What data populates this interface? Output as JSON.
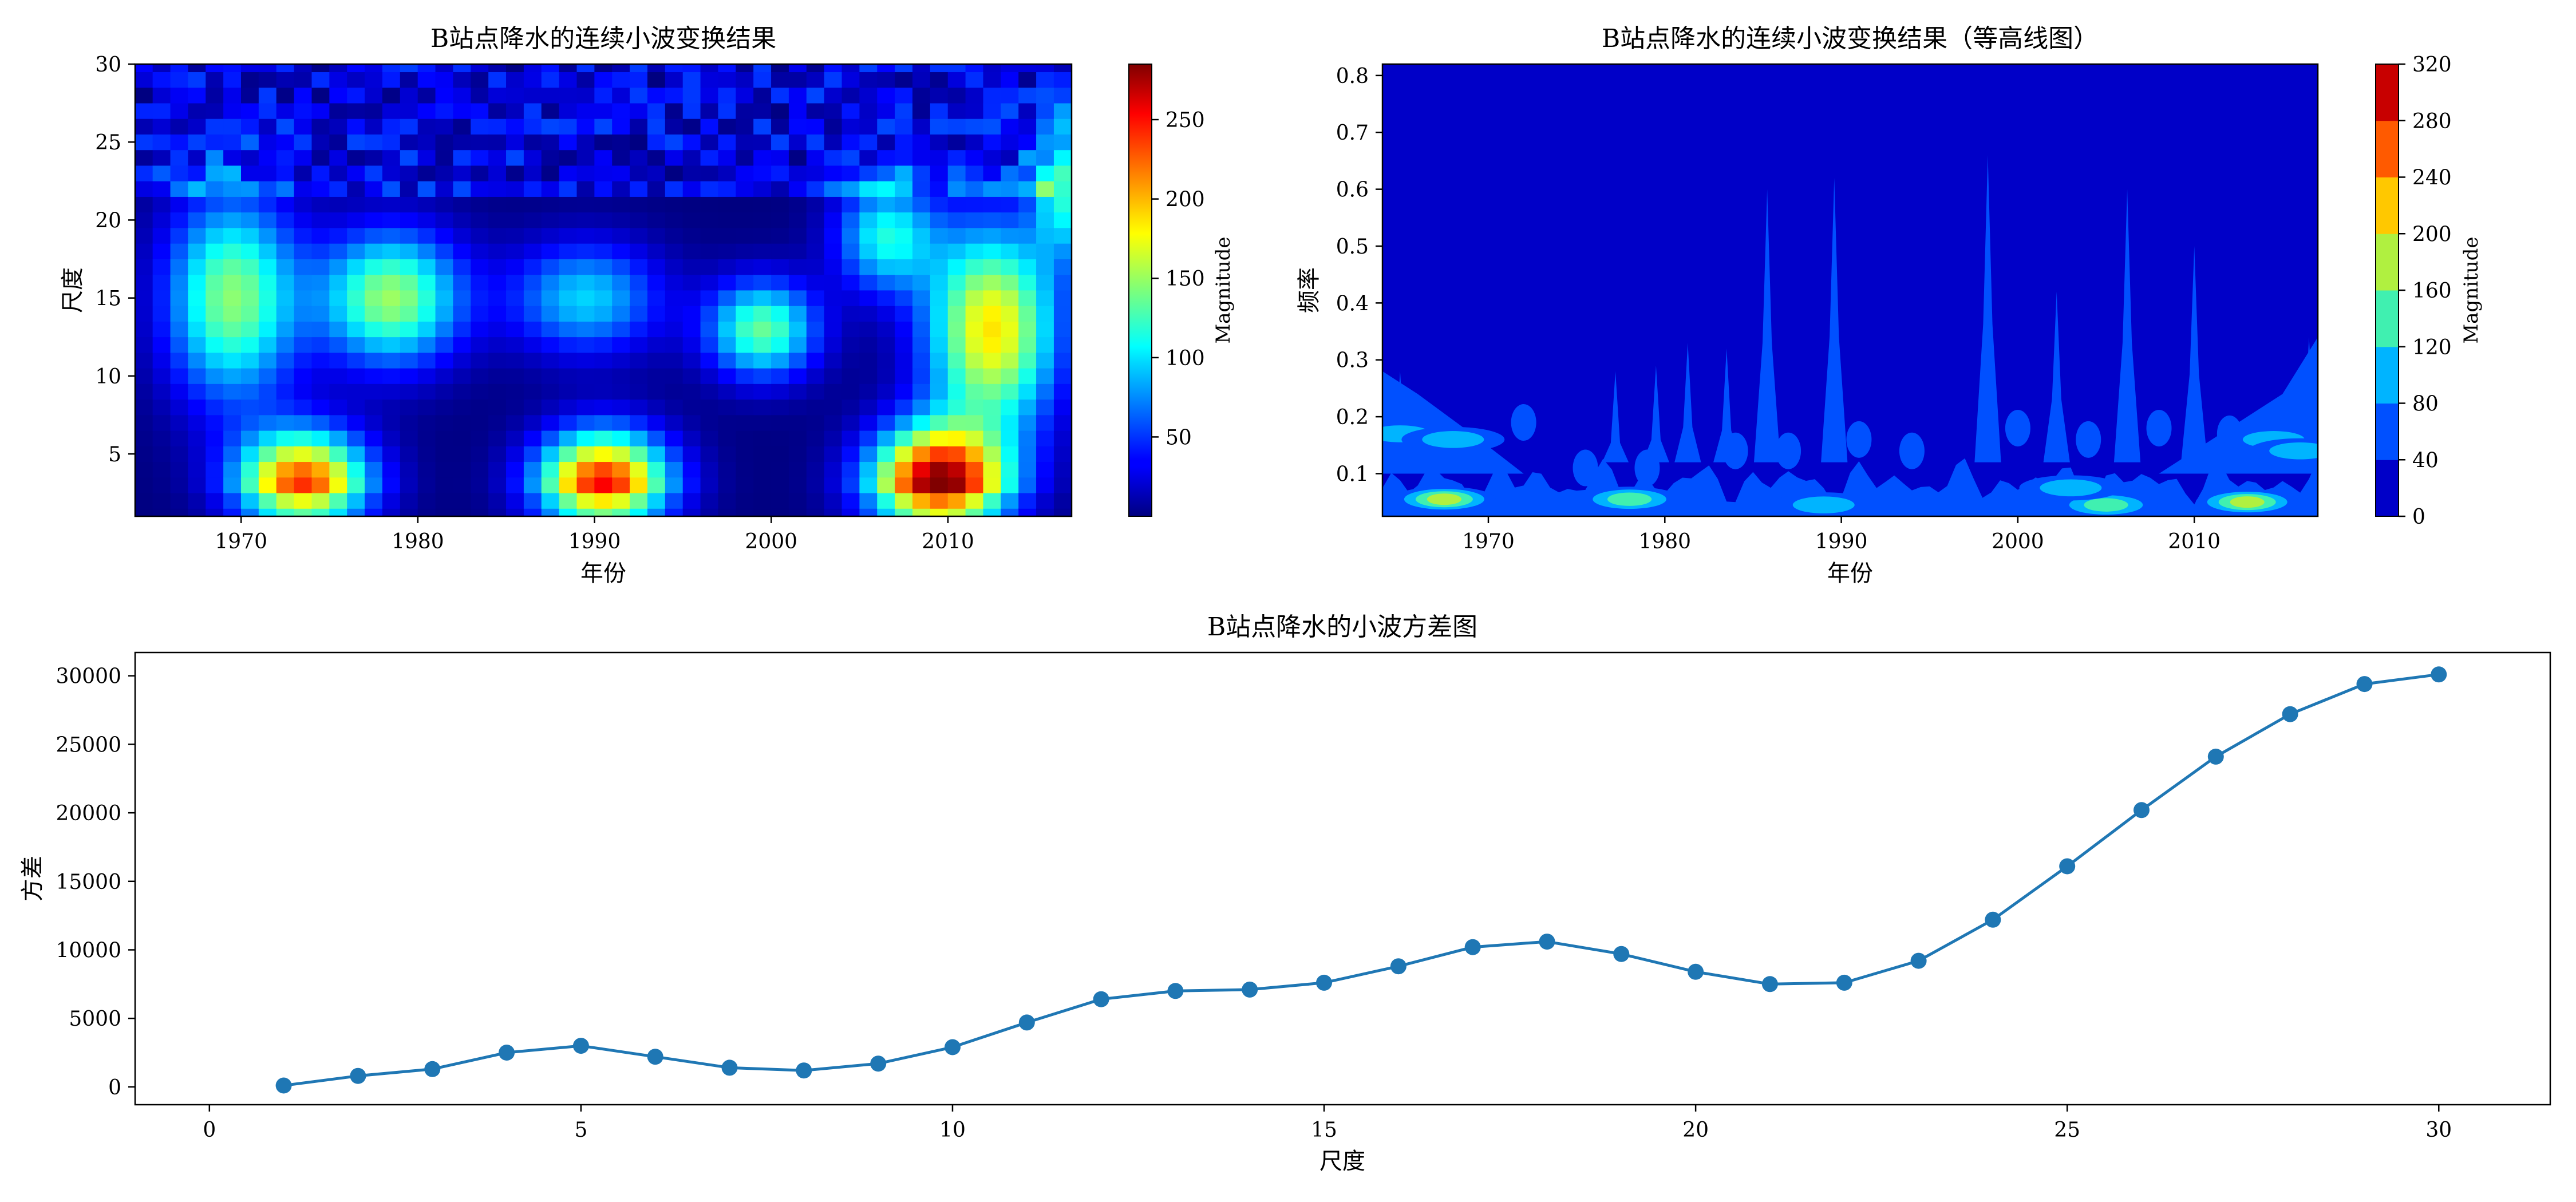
{
  "chart_data": [
    {
      "type": "heatmap",
      "title": "B站点降水的连续小波变换结果",
      "xlabel": "年份",
      "ylabel": "尺度",
      "xlim": [
        1964,
        2017
      ],
      "ylim": [
        1,
        30
      ],
      "xticks": [
        1970,
        1980,
        1990,
        2000,
        2010
      ],
      "yticks": [
        5,
        10,
        15,
        20,
        25,
        30
      ],
      "colorbar_label": "Magnitude",
      "colorbar_ticks": [
        50,
        100,
        150,
        200,
        250
      ],
      "colormap": "jet",
      "vmin": 0,
      "vmax": 285,
      "x_start": 1964,
      "x_end": 2016,
      "scales": 30,
      "peaks": [
        {
          "year": 1969,
          "scale": 15,
          "value": 145,
          "sx": 2.6,
          "sy": 4.6
        },
        {
          "year": 1973,
          "scale": 3,
          "value": 235,
          "sx": 2.6,
          "sy": 2.4
        },
        {
          "year": 1978,
          "scale": 15,
          "value": 150,
          "sx": 2.8,
          "sy": 3.0
        },
        {
          "year": 1990,
          "scale": 3,
          "value": 250,
          "sx": 2.6,
          "sy": 2.4
        },
        {
          "year": 1989,
          "scale": 15,
          "value": 95,
          "sx": 3.0,
          "sy": 2.5
        },
        {
          "year": 1999,
          "scale": 13,
          "value": 135,
          "sx": 2.2,
          "sy": 2.2
        },
        {
          "year": 2006,
          "scale": 19,
          "value": 110,
          "sx": 2.0,
          "sy": 2.5
        },
        {
          "year": 2009,
          "scale": 3,
          "value": 285,
          "sx": 2.7,
          "sy": 2.6
        },
        {
          "year": 2012,
          "scale": 13,
          "value": 185,
          "sx": 2.6,
          "sy": 4.6
        },
        {
          "year": 2016,
          "scale": 22,
          "value": 110,
          "sx": 1.2,
          "sy": 3.0
        }
      ]
    },
    {
      "type": "heatmap",
      "subtype": "filled-contour",
      "title": "B站点降水的连续小波变换结果（等高线图）",
      "xlabel": "年份",
      "ylabel": "频率",
      "xlim": [
        1964,
        2017
      ],
      "ylim": [
        0.025,
        0.82
      ],
      "xticks": [
        1970,
        1980,
        1990,
        2000,
        2010
      ],
      "yticks": [
        0.1,
        0.2,
        0.3,
        0.4,
        0.5,
        0.6,
        0.7,
        0.8
      ],
      "colorbar_label": "Magnitude",
      "levels": [
        0,
        40,
        80,
        120,
        160,
        200,
        240,
        280,
        320
      ],
      "level_colors": [
        "#0000c8",
        "#0050ff",
        "#00b4ff",
        "#40f0b0",
        "#b0f040",
        "#ffc800",
        "#ff5a00",
        "#c80000"
      ],
      "spikes": [
        {
          "year": 1985.8,
          "top": 0.6
        },
        {
          "year": 1989.6,
          "top": 0.62
        },
        {
          "year": 1998.3,
          "top": 0.66
        },
        {
          "year": 2006.2,
          "top": 0.6
        },
        {
          "year": 2010.0,
          "top": 0.5
        },
        {
          "year": 2002.2,
          "top": 0.42
        },
        {
          "year": 1981.3,
          "top": 0.33
        },
        {
          "year": 1983.5,
          "top": 0.32
        },
        {
          "year": 1979.5,
          "top": 0.29
        },
        {
          "year": 1977.2,
          "top": 0.28
        },
        {
          "year": 2016.5,
          "top": 0.34
        },
        {
          "year": 1965.0,
          "top": 0.28
        }
      ],
      "blobs": [
        {
          "year": 1967.5,
          "freq": 0.055,
          "level": 4
        },
        {
          "year": 1978.0,
          "freq": 0.055,
          "level": 3
        },
        {
          "year": 1989.0,
          "freq": 0.045,
          "level": 2
        },
        {
          "year": 2005.0,
          "freq": 0.045,
          "level": 3
        },
        {
          "year": 2013.0,
          "freq": 0.05,
          "level": 4
        },
        {
          "year": 1965.0,
          "freq": 0.17,
          "level": 2
        },
        {
          "year": 1968.0,
          "freq": 0.16,
          "level": 2
        },
        {
          "year": 2014.5,
          "freq": 0.16,
          "level": 2
        },
        {
          "year": 2016.0,
          "freq": 0.14,
          "level": 2
        },
        {
          "year": 2003.0,
          "freq": 0.075,
          "level": 2
        }
      ]
    },
    {
      "type": "line",
      "title": "B站点降水的小波方差图",
      "xlabel": "尺度",
      "ylabel": "方差",
      "xlim": [
        -1,
        31.5
      ],
      "ylim": [
        -1300,
        31700
      ],
      "xticks": [
        0,
        5,
        10,
        15,
        20,
        25,
        30
      ],
      "yticks": [
        0,
        5000,
        10000,
        15000,
        20000,
        25000,
        30000
      ],
      "color": "#1f77b4",
      "x": [
        1,
        2,
        3,
        4,
        5,
        6,
        7,
        8,
        9,
        10,
        11,
        12,
        13,
        14,
        15,
        16,
        17,
        18,
        19,
        20,
        21,
        22,
        23,
        24,
        25,
        26,
        27,
        28,
        29,
        30
      ],
      "y": [
        100,
        800,
        1300,
        2500,
        3000,
        2200,
        1400,
        1200,
        1700,
        2900,
        4700,
        6400,
        7000,
        7100,
        7600,
        8800,
        10200,
        10600,
        9700,
        8400,
        7500,
        7600,
        9200,
        12200,
        16100,
        20200,
        24100,
        27200,
        29400,
        30100
      ]
    }
  ]
}
